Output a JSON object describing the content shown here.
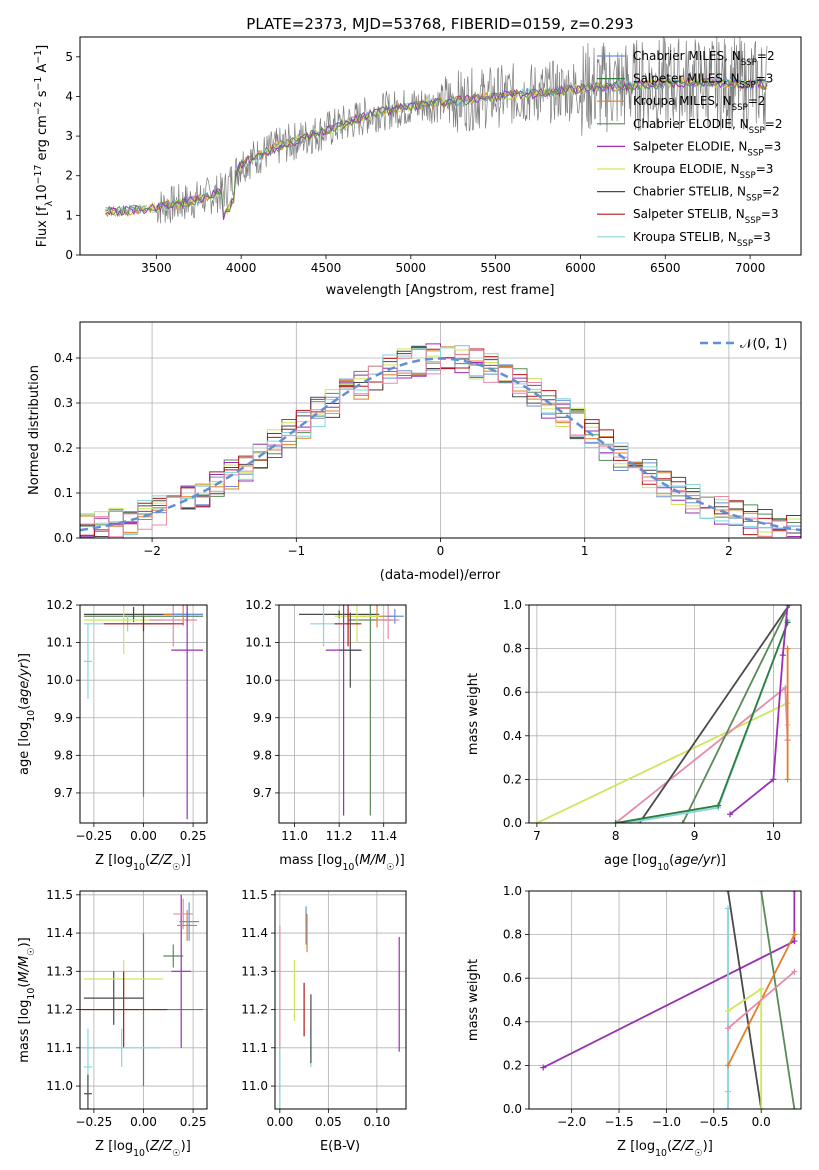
{
  "figure_title": "PLATE=2373, MJD=53768, FIBERID=0159, z=0.293",
  "colors": {
    "chabrier_miles": "#6b8fd6",
    "salpeter_miles": "#2e7d3c",
    "kroupa_miles": "#e0802a",
    "chabrier_elodie": "#5a8a5a",
    "salpeter_elodie": "#9a2fb4",
    "kroupa_elodie": "#cfe65c",
    "chabrier_stelib": "#4a4a4a",
    "salpeter_stelib": "#b01818",
    "kroupa_stelib": "#86d6dc",
    "pink": "#e88aa8",
    "data": "#7f7f7f",
    "gauss": "#5f8fd6"
  },
  "chart_data": [
    {
      "type": "line",
      "id": "spectrum",
      "xlabel": "wavelength [Angstrom, rest frame]",
      "ylabel": "Flux [f_λ10^-17 erg cm^-2 s^-1 A^-1]",
      "xlim": [
        3050,
        7300
      ],
      "ylim": [
        0,
        5.5
      ],
      "xticks": [
        3500,
        4000,
        4500,
        5000,
        5500,
        6000,
        6500,
        7000
      ],
      "yticks": [
        0,
        1,
        2,
        3,
        4,
        5
      ],
      "legend_position": "top-right",
      "legend": [
        "Chabrier MILES, N_SSP=2",
        "Salpeter MILES, N_SSP=3",
        "Kroupa MILES, N_SSP=2",
        "Chabrier ELODIE, N_SSP=2",
        "Salpeter ELODIE, N_SSP=3",
        "Kroupa ELODIE, N_SSP=3",
        "Chabrier STELIB, N_SSP=2",
        "Salpeter STELIB, N_SSP=3",
        "Kroupa STELIB, N_SSP=3"
      ],
      "continuum": {
        "x": [
          3200,
          3300,
          3500,
          3700,
          3900,
          4000,
          4200,
          4400,
          4600,
          4800,
          5000,
          5200,
          5400,
          5600,
          5800,
          6000,
          6200,
          6400,
          6600,
          6800,
          7000,
          7100
        ],
        "y": [
          1.1,
          1.1,
          1.2,
          1.35,
          1.6,
          2.3,
          2.7,
          3.0,
          3.3,
          3.6,
          3.75,
          3.85,
          3.95,
          4.05,
          4.1,
          4.2,
          4.25,
          4.3,
          4.35,
          4.35,
          4.3,
          4.3
        ]
      }
    },
    {
      "type": "bar",
      "id": "residuals",
      "xlabel": "(data-model)/error",
      "ylabel": "Normed distribution",
      "xlim": [
        -2.5,
        2.5
      ],
      "ylim": [
        0,
        0.48
      ],
      "xticks": [
        -2,
        -1,
        0,
        1,
        2
      ],
      "yticks": [
        0.0,
        0.1,
        0.2,
        0.3,
        0.4
      ],
      "legend": [
        "𝒩(0, 1)"
      ],
      "legend_position": "top-right",
      "bin_width": 0.1
    },
    {
      "type": "scatter",
      "id": "age_vs_Z",
      "xlabel": "Z [log10(Z/Z☉)]",
      "ylabel": "age  [log10(age/yr)]",
      "xlim": [
        -0.32,
        0.32
      ],
      "ylim": [
        9.62,
        10.2
      ],
      "xticks": [
        -0.25,
        0.0,
        0.25
      ],
      "yticks": [
        9.7,
        9.8,
        9.9,
        10.0,
        10.1,
        10.2
      ]
    },
    {
      "type": "scatter",
      "id": "age_vs_mass",
      "xlabel": "mass [log10(M/M☉)]",
      "ylabel": "",
      "xlim": [
        10.93,
        11.5
      ],
      "ylim": [
        9.62,
        10.2
      ],
      "xticks": [
        11.0,
        11.2,
        11.4
      ],
      "yticks": [
        9.7,
        9.8,
        9.9,
        10.0,
        10.1,
        10.2
      ]
    },
    {
      "type": "line",
      "id": "weight_vs_age",
      "xlabel": "age  [log10(age/yr)]",
      "ylabel": "mass weight",
      "xlim": [
        6.9,
        10.35
      ],
      "ylim": [
        0,
        1
      ],
      "xticks": [
        7,
        8,
        9,
        10
      ],
      "yticks": [
        0.0,
        0.2,
        0.4,
        0.6,
        0.8,
        1.0
      ],
      "series": [
        {
          "color": "kroupa_elodie",
          "x": [
            7.0,
            10.18,
            10.18
          ],
          "y": [
            0.0,
            0.55,
            0.45
          ]
        },
        {
          "color": "pink",
          "x": [
            8.0,
            10.15,
            10.18
          ],
          "y": [
            0.0,
            0.62,
            0.38
          ]
        },
        {
          "color": "chabrier_stelib",
          "x": [
            8.3,
            10.2
          ],
          "y": [
            0.0,
            1.0
          ]
        },
        {
          "color": "chabrier_elodie",
          "x": [
            8.85,
            10.2
          ],
          "y": [
            0.0,
            1.0
          ]
        },
        {
          "color": "kroupa_stelib",
          "x": [
            8.0,
            8.3,
            9.3,
            10.18,
            10.18
          ],
          "y": [
            0.0,
            0.01,
            0.07,
            0.92,
            0.93
          ]
        },
        {
          "color": "salpeter_miles",
          "x": [
            8.0,
            9.3,
            10.18
          ],
          "y": [
            0.0,
            0.08,
            0.92
          ]
        },
        {
          "color": "kroupa_miles",
          "x": [
            10.18,
            10.18
          ],
          "y": [
            0.2,
            0.8
          ]
        },
        {
          "color": "salpeter_elodie",
          "x": [
            9.45,
            10.0,
            10.12,
            10.18
          ],
          "y": [
            0.04,
            0.2,
            0.77,
            1.0
          ]
        }
      ]
    },
    {
      "type": "scatter",
      "id": "mass_vs_Z",
      "xlabel": "Z [log10(Z/Z☉)]",
      "ylabel": "mass [log10(M/M☉)]",
      "xlim": [
        -0.32,
        0.32
      ],
      "ylim": [
        10.94,
        11.51
      ],
      "xticks": [
        -0.25,
        0.0,
        0.25
      ],
      "yticks": [
        11.0,
        11.1,
        11.2,
        11.3,
        11.4,
        11.5
      ]
    },
    {
      "type": "scatter",
      "id": "mass_vs_ebv",
      "xlabel": "E(B-V)",
      "ylabel": "",
      "xlim": [
        -0.005,
        0.13
      ],
      "ylim": [
        10.94,
        11.51
      ],
      "xticks": [
        0.0,
        0.05,
        0.1
      ],
      "yticks": [
        11.0,
        11.1,
        11.2,
        11.3,
        11.4,
        11.5
      ]
    },
    {
      "type": "line",
      "id": "weight_vs_Z",
      "xlabel": "Z [log10(Z/Z☉)]",
      "ylabel": "mass weight",
      "xlim": [
        -2.45,
        0.42
      ],
      "ylim": [
        0,
        1
      ],
      "xticks": [
        -2.0,
        -1.5,
        -1.0,
        -0.5,
        0.0
      ],
      "yticks": [
        0.0,
        0.2,
        0.4,
        0.6,
        0.8,
        1.0
      ],
      "series": [
        {
          "color": "salpeter_elodie",
          "x": [
            -2.3,
            0.35,
            0.35
          ],
          "y": [
            0.19,
            0.77,
            1.0
          ]
        },
        {
          "color": "kroupa_stelib",
          "x": [
            -0.35,
            -0.35,
            -0.35
          ],
          "y": [
            0.08,
            0.92,
            0.0
          ]
        },
        {
          "color": "chabrier_stelib",
          "x": [
            -0.35,
            0.0
          ],
          "y": [
            1.0,
            0.0
          ]
        },
        {
          "color": "chabrier_elodie",
          "x": [
            0.0,
            0.35
          ],
          "y": [
            1.0,
            0.0
          ]
        },
        {
          "color": "kroupa_miles",
          "x": [
            -0.35,
            0.35
          ],
          "y": [
            0.2,
            0.8
          ]
        },
        {
          "color": "kroupa_elodie",
          "x": [
            -0.35,
            0.0,
            0.0
          ],
          "y": [
            0.45,
            0.55,
            0.0
          ]
        },
        {
          "color": "pink",
          "x": [
            -0.35,
            0.35
          ],
          "y": [
            0.37,
            0.63
          ]
        }
      ]
    }
  ]
}
